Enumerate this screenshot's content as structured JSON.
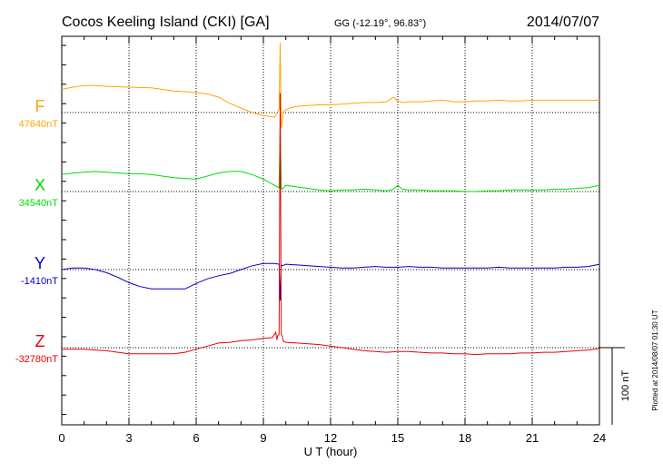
{
  "header": {
    "station": "Cocos Keeling Island (CKI)  [GA]",
    "coords": "GG (-12.19°,  96.83°)",
    "date": "2014/07/07"
  },
  "footer": {
    "plotted": "Plotted at 2014/08/07 01:30 UT"
  },
  "chart_data": {
    "type": "line",
    "title": "Cocos Keeling Island (CKI)  [GA]",
    "xlabel": "U T (hour)",
    "xlim": [
      0,
      24
    ],
    "xticks": [
      "0",
      "3",
      "6",
      "9",
      "12",
      "15",
      "18",
      "21",
      "24"
    ],
    "grid": true,
    "scale_bar": {
      "label": "100 nT",
      "value_nT": 100
    },
    "series": [
      {
        "name": "F",
        "baseline_label": "47640nT",
        "baseline_nT": 47640,
        "color": "#ffa500",
        "x": [
          0,
          0.5,
          1,
          1.5,
          2,
          3,
          4,
          5,
          6,
          6.5,
          7,
          7.5,
          8,
          8.5,
          9,
          9.5,
          9.7,
          9.75,
          9.8,
          9.85,
          9.9,
          10.2,
          10.5,
          11,
          11.5,
          12,
          12.5,
          13,
          13.5,
          14,
          14.5,
          14.8,
          15,
          15.2,
          15.5,
          16,
          16.5,
          17,
          17.5,
          18,
          18.5,
          19,
          19.5,
          20,
          20.5,
          21,
          21.5,
          22,
          22.5,
          23,
          23.5,
          24
        ],
        "y": [
          47670,
          47673,
          47675,
          47675,
          47674,
          47673,
          47672,
          47668,
          47666,
          47664,
          47660,
          47652,
          47646,
          47640,
          47636,
          47634,
          47645,
          47730,
          47620,
          47630,
          47642,
          47646,
          47648,
          47649,
          47650,
          47650,
          47651,
          47652,
          47653,
          47653,
          47654,
          47660,
          47655,
          47653,
          47654,
          47654,
          47655,
          47656,
          47654,
          47654,
          47655,
          47655,
          47656,
          47655,
          47655,
          47656,
          47656,
          47656,
          47656,
          47656,
          47656,
          47656
        ]
      },
      {
        "name": "X",
        "baseline_label": "34540nT",
        "baseline_nT": 34540,
        "color": "#00dd00",
        "x": [
          0,
          0.5,
          1,
          1.5,
          2,
          2.5,
          3,
          3.5,
          4,
          4.5,
          5,
          5.5,
          6,
          6.5,
          7,
          7.5,
          8,
          8.5,
          9,
          9.5,
          9.7,
          9.75,
          9.8,
          9.85,
          10,
          10.5,
          11,
          11.5,
          12,
          12.5,
          13,
          13.5,
          14,
          14.5,
          14.8,
          15,
          15.2,
          15.5,
          16,
          16.5,
          17,
          17.5,
          18,
          18.5,
          19,
          19.5,
          20,
          20.5,
          21,
          21.5,
          22,
          22.5,
          23,
          23.5,
          24
        ],
        "y": [
          34562,
          34564,
          34565,
          34566,
          34565,
          34564,
          34563,
          34563,
          34562,
          34560,
          34558,
          34557,
          34556,
          34560,
          34564,
          34566,
          34566,
          34562,
          34556,
          34548,
          34545,
          34625,
          34545,
          34543,
          34548,
          34546,
          34544,
          34542,
          34541,
          34542,
          34542,
          34543,
          34542,
          34541,
          34543,
          34548,
          34543,
          34542,
          34542,
          34541,
          34541,
          34541,
          34540,
          34540,
          34541,
          34541,
          34542,
          34542,
          34542,
          34542,
          34543,
          34543,
          34544,
          34545,
          34548
        ]
      },
      {
        "name": "Y",
        "baseline_label": "-1410nT",
        "baseline_nT": -1410,
        "color": "#0000cc",
        "x": [
          0,
          0.5,
          1,
          1.5,
          2,
          2.5,
          3,
          3.5,
          4,
          4.5,
          5,
          5.5,
          6,
          6.5,
          7,
          7.5,
          8,
          8.5,
          9,
          9.5,
          9.7,
          9.75,
          9.8,
          9.85,
          10,
          10.5,
          11,
          11.5,
          12,
          12.5,
          13,
          13.5,
          14,
          14.5,
          15,
          15.5,
          16,
          16.5,
          17,
          17.5,
          18,
          18.5,
          19,
          19.5,
          20,
          20.5,
          21,
          21.5,
          22,
          22.5,
          23,
          23.5,
          24
        ],
        "y": [
          -1410,
          -1408,
          -1408,
          -1410,
          -1414,
          -1420,
          -1427,
          -1432,
          -1435,
          -1435,
          -1435,
          -1435,
          -1428,
          -1422,
          -1418,
          -1415,
          -1410,
          -1405,
          -1402,
          -1402,
          -1403,
          -1450,
          -1404,
          -1405,
          -1403,
          -1404,
          -1405,
          -1406,
          -1407,
          -1408,
          -1408,
          -1407,
          -1406,
          -1407,
          -1407,
          -1406,
          -1407,
          -1407,
          -1408,
          -1408,
          -1408,
          -1408,
          -1408,
          -1407,
          -1408,
          -1408,
          -1408,
          -1408,
          -1408,
          -1407,
          -1407,
          -1406,
          -1403
        ]
      },
      {
        "name": "Z",
        "baseline_label": "-32780nT",
        "baseline_nT": -32780,
        "color": "#ee0000",
        "x": [
          0,
          0.5,
          1,
          1.5,
          2,
          2.5,
          3,
          3.5,
          4,
          4.5,
          5,
          5.5,
          6,
          6.5,
          7,
          7.5,
          8,
          8.5,
          9,
          9.4,
          9.55,
          9.6,
          9.65,
          9.7,
          9.75,
          9.8,
          9.85,
          9.9,
          10,
          10.5,
          11,
          11.5,
          12,
          12.5,
          13,
          13.5,
          14,
          14.5,
          15,
          15.5,
          16,
          16.5,
          17,
          17.5,
          18,
          18.5,
          19,
          19.5,
          20,
          20.5,
          21,
          21.5,
          22,
          22.5,
          23,
          23.5,
          24
        ],
        "y": [
          -32782,
          -32782,
          -32782,
          -32783,
          -32784,
          -32786,
          -32788,
          -32788,
          -32788,
          -32788,
          -32788,
          -32786,
          -32782,
          -32778,
          -32774,
          -32773,
          -32771,
          -32770,
          -32768,
          -32767,
          -32760,
          -32770,
          -32764,
          -32763,
          -32450,
          -32762,
          -32766,
          -32772,
          -32773,
          -32774,
          -32775,
          -32776,
          -32778,
          -32780,
          -32782,
          -32784,
          -32785,
          -32786,
          -32785,
          -32785,
          -32786,
          -32787,
          -32787,
          -32788,
          -32788,
          -32789,
          -32788,
          -32788,
          -32788,
          -32787,
          -32787,
          -32786,
          -32786,
          -32785,
          -32784,
          -32783,
          -32781
        ]
      }
    ]
  }
}
